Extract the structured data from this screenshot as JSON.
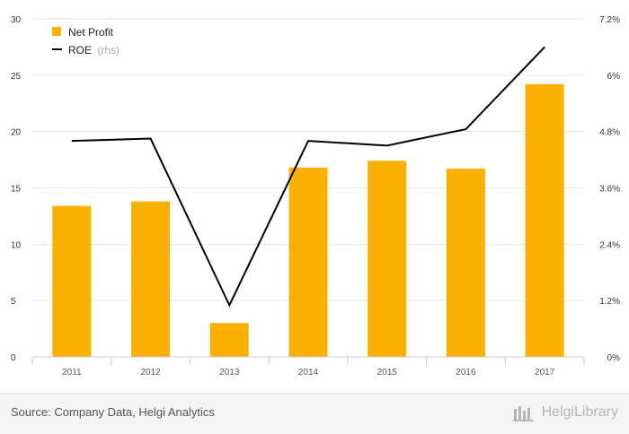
{
  "chart_data": {
    "type": "bar",
    "categories": [
      "2011",
      "2012",
      "2013",
      "2014",
      "2015",
      "2016",
      "2017"
    ],
    "series": [
      {
        "name": "Net Profit",
        "type": "bar",
        "axis": "left",
        "color": "#f9b000",
        "values": [
          13.4,
          13.8,
          3.0,
          16.8,
          17.4,
          16.7,
          24.2
        ]
      },
      {
        "name": "ROE",
        "name_suffix": "(rhs)",
        "type": "line",
        "axis": "right",
        "color": "#000000",
        "values": [
          4.6,
          4.65,
          1.1,
          4.6,
          4.5,
          4.85,
          6.6
        ]
      }
    ],
    "y_left": {
      "ylim": [
        0,
        30
      ],
      "ticks": [
        "0",
        "5",
        "10",
        "15",
        "20",
        "25",
        "30"
      ]
    },
    "y_right": {
      "ylim": [
        0,
        7.2
      ],
      "ticks": [
        "0%",
        "1.2%",
        "2.4%",
        "3.6%",
        "4.8%",
        "6%",
        "7.2%"
      ]
    },
    "grid": true,
    "legend_position": "top-left"
  },
  "footer": {
    "source": "Source: Company Data, Helgi Analytics",
    "brand": "HelgiLibrary"
  }
}
